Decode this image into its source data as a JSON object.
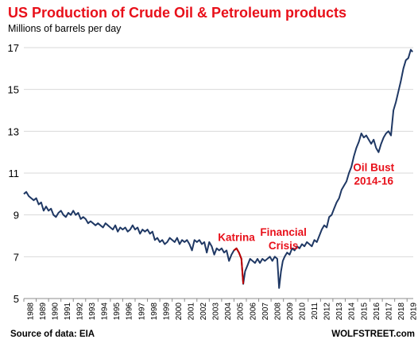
{
  "header": {
    "title": "US Production  of Crude  Oil & Petroleum products",
    "subtitle": "Millions of barrels per day"
  },
  "footer": {
    "source": "Source of data: EIA",
    "brand": "WOLFSTREET.com"
  },
  "chart_data": {
    "type": "line",
    "ylim": [
      5,
      17
    ],
    "xlim": [
      1988,
      2019.5
    ],
    "yticks": [
      "5",
      "7",
      "9",
      "11",
      "13",
      "15",
      "17"
    ],
    "xticks": [
      "1988",
      "1989",
      "1990",
      "1991",
      "1992",
      "1993",
      "1994",
      "1995",
      "1996",
      "1997",
      "1998",
      "1999",
      "2000",
      "2001",
      "2002",
      "2003",
      "2004",
      "2005",
      "2006",
      "2007",
      "2008",
      "2009",
      "2010",
      "2011",
      "2012",
      "2013",
      "2014",
      "2015",
      "2016",
      "2017",
      "2018",
      "2019"
    ],
    "grid": "horizontal",
    "colors": {
      "line": "#1f3864",
      "highlight": "#c00000",
      "annotation": "#e8101a"
    },
    "series": [
      {
        "values": [
          [
            1988.0,
            10.0
          ],
          [
            1988.2,
            10.1
          ],
          [
            1988.4,
            9.9
          ],
          [
            1988.6,
            9.8
          ],
          [
            1988.8,
            9.7
          ],
          [
            1989.0,
            9.8
          ],
          [
            1989.2,
            9.5
          ],
          [
            1989.4,
            9.6
          ],
          [
            1989.6,
            9.2
          ],
          [
            1989.8,
            9.4
          ],
          [
            1990.0,
            9.2
          ],
          [
            1990.2,
            9.3
          ],
          [
            1990.4,
            9.0
          ],
          [
            1990.6,
            8.9
          ],
          [
            1990.8,
            9.1
          ],
          [
            1991.0,
            9.2
          ],
          [
            1991.2,
            9.0
          ],
          [
            1991.4,
            8.9
          ],
          [
            1991.6,
            9.1
          ],
          [
            1991.8,
            9.0
          ],
          [
            1992.0,
            9.2
          ],
          [
            1992.2,
            9.0
          ],
          [
            1992.4,
            9.1
          ],
          [
            1992.6,
            8.8
          ],
          [
            1992.8,
            8.9
          ],
          [
            1993.0,
            8.8
          ],
          [
            1993.2,
            8.6
          ],
          [
            1993.4,
            8.7
          ],
          [
            1993.6,
            8.6
          ],
          [
            1993.8,
            8.5
          ],
          [
            1994.0,
            8.6
          ],
          [
            1994.2,
            8.5
          ],
          [
            1994.4,
            8.4
          ],
          [
            1994.6,
            8.6
          ],
          [
            1994.8,
            8.5
          ],
          [
            1995.0,
            8.4
          ],
          [
            1995.2,
            8.3
          ],
          [
            1995.4,
            8.5
          ],
          [
            1995.6,
            8.2
          ],
          [
            1995.8,
            8.4
          ],
          [
            1996.0,
            8.3
          ],
          [
            1996.2,
            8.4
          ],
          [
            1996.4,
            8.2
          ],
          [
            1996.6,
            8.3
          ],
          [
            1996.8,
            8.5
          ],
          [
            1997.0,
            8.3
          ],
          [
            1997.2,
            8.4
          ],
          [
            1997.4,
            8.1
          ],
          [
            1997.6,
            8.3
          ],
          [
            1997.8,
            8.2
          ],
          [
            1998.0,
            8.3
          ],
          [
            1998.2,
            8.1
          ],
          [
            1998.4,
            8.2
          ],
          [
            1998.6,
            7.8
          ],
          [
            1998.8,
            7.9
          ],
          [
            1999.0,
            7.7
          ],
          [
            1999.2,
            7.8
          ],
          [
            1999.4,
            7.6
          ],
          [
            1999.6,
            7.7
          ],
          [
            1999.8,
            7.9
          ],
          [
            2000.0,
            7.8
          ],
          [
            2000.2,
            7.7
          ],
          [
            2000.4,
            7.9
          ],
          [
            2000.6,
            7.6
          ],
          [
            2000.8,
            7.8
          ],
          [
            2001.0,
            7.7
          ],
          [
            2001.2,
            7.8
          ],
          [
            2001.4,
            7.6
          ],
          [
            2001.6,
            7.3
          ],
          [
            2001.8,
            7.8
          ],
          [
            2002.0,
            7.7
          ],
          [
            2002.2,
            7.8
          ],
          [
            2002.4,
            7.6
          ],
          [
            2002.6,
            7.7
          ],
          [
            2002.8,
            7.2
          ],
          [
            2003.0,
            7.7
          ],
          [
            2003.2,
            7.5
          ],
          [
            2003.4,
            7.1
          ],
          [
            2003.6,
            7.4
          ],
          [
            2003.8,
            7.3
          ],
          [
            2004.0,
            7.4
          ],
          [
            2004.2,
            7.2
          ],
          [
            2004.4,
            7.3
          ],
          [
            2004.6,
            6.8
          ],
          [
            2004.8,
            7.1
          ],
          [
            2005.0,
            7.3
          ],
          [
            2005.2,
            7.4
          ],
          [
            2005.4,
            7.2
          ],
          [
            2005.6,
            6.9
          ],
          [
            2005.75,
            5.7
          ],
          [
            2005.9,
            6.3
          ],
          [
            2006.1,
            6.6
          ],
          [
            2006.3,
            6.9
          ],
          [
            2006.5,
            6.8
          ],
          [
            2006.7,
            6.7
          ],
          [
            2006.9,
            6.9
          ],
          [
            2007.1,
            6.7
          ],
          [
            2007.3,
            6.9
          ],
          [
            2007.5,
            6.8
          ],
          [
            2007.7,
            6.9
          ],
          [
            2007.9,
            7.0
          ],
          [
            2008.1,
            6.8
          ],
          [
            2008.3,
            7.0
          ],
          [
            2008.5,
            6.9
          ],
          [
            2008.65,
            5.5
          ],
          [
            2008.8,
            6.3
          ],
          [
            2008.95,
            6.8
          ],
          [
            2009.1,
            7.0
          ],
          [
            2009.3,
            7.2
          ],
          [
            2009.5,
            7.1
          ],
          [
            2009.7,
            7.4
          ],
          [
            2009.9,
            7.3
          ],
          [
            2010.1,
            7.5
          ],
          [
            2010.3,
            7.4
          ],
          [
            2010.5,
            7.6
          ],
          [
            2010.7,
            7.5
          ],
          [
            2010.9,
            7.7
          ],
          [
            2011.1,
            7.6
          ],
          [
            2011.3,
            7.5
          ],
          [
            2011.5,
            7.8
          ],
          [
            2011.7,
            7.7
          ],
          [
            2011.9,
            8.0
          ],
          [
            2012.1,
            8.3
          ],
          [
            2012.3,
            8.5
          ],
          [
            2012.5,
            8.4
          ],
          [
            2012.7,
            8.9
          ],
          [
            2012.9,
            9.0
          ],
          [
            2013.1,
            9.3
          ],
          [
            2013.3,
            9.6
          ],
          [
            2013.5,
            9.8
          ],
          [
            2013.7,
            10.2
          ],
          [
            2013.9,
            10.4
          ],
          [
            2014.1,
            10.6
          ],
          [
            2014.3,
            11.0
          ],
          [
            2014.5,
            11.3
          ],
          [
            2014.7,
            11.8
          ],
          [
            2014.9,
            12.2
          ],
          [
            2015.1,
            12.5
          ],
          [
            2015.3,
            12.9
          ],
          [
            2015.5,
            12.7
          ],
          [
            2015.7,
            12.8
          ],
          [
            2015.9,
            12.6
          ],
          [
            2016.1,
            12.4
          ],
          [
            2016.3,
            12.6
          ],
          [
            2016.5,
            12.2
          ],
          [
            2016.7,
            12.0
          ],
          [
            2016.9,
            12.4
          ],
          [
            2017.1,
            12.7
          ],
          [
            2017.3,
            12.9
          ],
          [
            2017.5,
            13.0
          ],
          [
            2017.7,
            12.8
          ],
          [
            2017.9,
            14.0
          ],
          [
            2018.1,
            14.4
          ],
          [
            2018.3,
            14.9
          ],
          [
            2018.5,
            15.4
          ],
          [
            2018.7,
            16.0
          ],
          [
            2018.9,
            16.4
          ],
          [
            2019.1,
            16.5
          ],
          [
            2019.3,
            16.9
          ],
          [
            2019.45,
            16.8
          ]
        ]
      }
    ],
    "highlight": {
      "x_from": 2005.0,
      "x_to": 2005.75
    },
    "annotations": [
      {
        "id": "katrina",
        "lines": [
          "Katrina"
        ],
        "x": 2005.2,
        "y": 7.75
      },
      {
        "id": "financial-crisis",
        "lines": [
          "Financial",
          "Crisis"
        ],
        "x": 2009.0,
        "y": 8.0
      },
      {
        "id": "oil-bust",
        "lines": [
          "Oil Bust",
          "2014-16"
        ],
        "x": 2016.3,
        "y": 11.1
      }
    ]
  }
}
